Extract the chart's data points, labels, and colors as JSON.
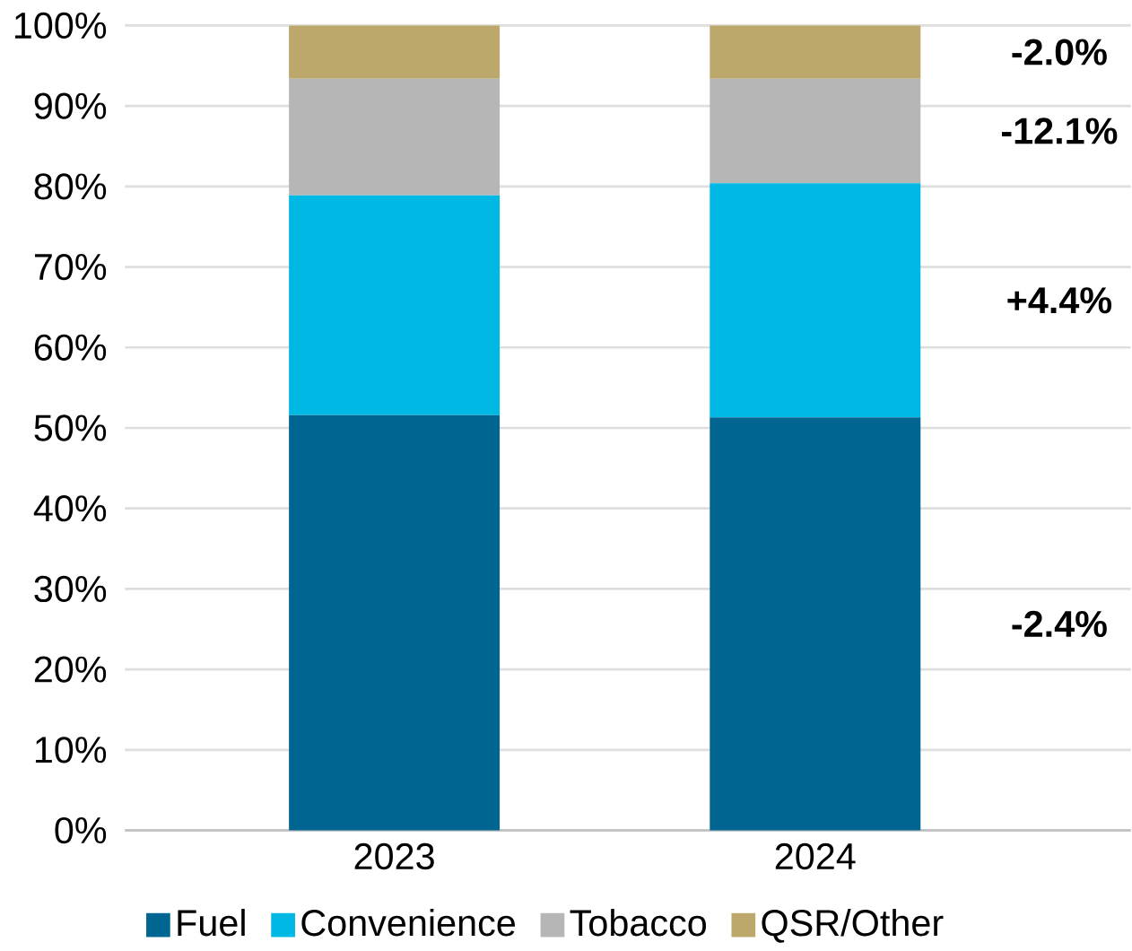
{
  "chart_data": {
    "type": "bar",
    "stacked": true,
    "categories": [
      "2023",
      "2024"
    ],
    "series": [
      {
        "name": "Fuel",
        "color": "#006691",
        "values": [
          51.6,
          51.3
        ]
      },
      {
        "name": "Convenience",
        "color": "#00b8e4",
        "values": [
          27.3,
          29.1
        ]
      },
      {
        "name": "Tobacco",
        "color": "#b6b6b6",
        "values": [
          14.5,
          13.0
        ]
      },
      {
        "name": "QSR/Other",
        "color": "#bda86c",
        "values": [
          6.6,
          6.6
        ]
      }
    ],
    "ylim": [
      0,
      100
    ],
    "yticks": [
      {
        "value": 0,
        "label": "0%"
      },
      {
        "value": 10,
        "label": "10%"
      },
      {
        "value": 20,
        "label": "20%"
      },
      {
        "value": 30,
        "label": "30%"
      },
      {
        "value": 40,
        "label": "40%"
      },
      {
        "value": 50,
        "label": "50%"
      },
      {
        "value": 60,
        "label": "60%"
      },
      {
        "value": 70,
        "label": "70%"
      },
      {
        "value": 80,
        "label": "80%"
      },
      {
        "value": 90,
        "label": "90%"
      },
      {
        "value": 100,
        "label": "100%"
      }
    ],
    "grid": "y",
    "legend": "bottom",
    "annotations": [
      "-2.0%",
      "-12.1%",
      "+4.4%",
      "-2.4%"
    ]
  }
}
